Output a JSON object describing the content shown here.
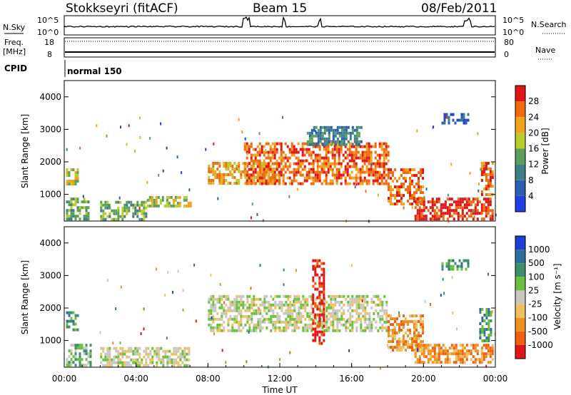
{
  "header": {
    "station": "Stokkseyri (fitACF)",
    "beam": "Beam 15",
    "date": "08/Feb/2011"
  },
  "summary": {
    "nsky_label": "N.Sky",
    "nsearch_label": "N.Search",
    "noise_ticks": [
      "10^5",
      "10^0"
    ],
    "freq_label_1": "Freq.",
    "freq_label_2": "[MHz]",
    "freq_ticks": [
      "18",
      "8"
    ],
    "nave_label": "Nave",
    "nave_ticks": [
      "80",
      "0"
    ],
    "cpid_label": "CPID",
    "cpid_value": "normal 150"
  },
  "time_axis": {
    "label": "Time UT",
    "ticks": [
      "00:00",
      "04:00",
      "08:00",
      "12:00",
      "16:00",
      "20:00",
      "00:00"
    ]
  },
  "chart_data": [
    {
      "type": "heatmap",
      "panel": "power",
      "ylabel": "Slant Range [km]",
      "ylim": [
        180,
        4500
      ],
      "y_ticks": [
        "1000",
        "2000",
        "3000",
        "4000"
      ],
      "xlim_hours": [
        0,
        24
      ],
      "colorbar_label": "Power [dB]",
      "colorbar_ticks": [
        "4",
        "8",
        "12",
        "16",
        "20",
        "24",
        "28"
      ],
      "colors": [
        "#1f3fe6",
        "#2a5fb0",
        "#3f7f8a",
        "#5aa05a",
        "#b8cc2a",
        "#f2a21a",
        "#f06a10",
        "#e01515"
      ],
      "regions": [
        {
          "t0": 0.1,
          "t1": 0.7,
          "r0": 1300,
          "r1": 1800,
          "level": 4
        },
        {
          "t0": 0.1,
          "t1": 1.4,
          "r0": 250,
          "r1": 900,
          "level": 3
        },
        {
          "t0": 2.0,
          "t1": 4.6,
          "r0": 250,
          "r1": 800,
          "level": 3
        },
        {
          "t0": 4.6,
          "t1": 7.0,
          "r0": 600,
          "r1": 950,
          "level": 4
        },
        {
          "t0": 8.0,
          "t1": 12.0,
          "r0": 1300,
          "r1": 2000,
          "level": 5
        },
        {
          "t0": 10.0,
          "t1": 18.0,
          "r0": 1300,
          "r1": 2600,
          "level": 6
        },
        {
          "t0": 13.5,
          "t1": 16.5,
          "r0": 2500,
          "r1": 3100,
          "level": 2
        },
        {
          "t0": 18.0,
          "t1": 20.0,
          "r0": 700,
          "r1": 1800,
          "level": 6
        },
        {
          "t0": 19.5,
          "t1": 23.8,
          "r0": 250,
          "r1": 900,
          "level": 7
        },
        {
          "t0": 21.0,
          "t1": 22.5,
          "r0": 3200,
          "r1": 3500,
          "level": 1
        },
        {
          "t0": 23.2,
          "t1": 23.8,
          "r0": 1000,
          "r1": 2000,
          "level": 6
        }
      ]
    },
    {
      "type": "heatmap",
      "panel": "velocity",
      "ylabel": "Slant Range [km]",
      "ylim": [
        180,
        4500
      ],
      "y_ticks": [
        "1000",
        "2000",
        "3000",
        "4000"
      ],
      "xlim_hours": [
        0,
        24
      ],
      "colorbar_label": "Velocity [m s⁻¹]",
      "colorbar_ticks": [
        "1000",
        "500",
        "100",
        "25",
        "-25",
        "-100",
        "-500",
        "-1000"
      ],
      "colors": [
        "#1e3fd0",
        "#2e6fa0",
        "#3f8f6a",
        "#6cc040",
        "#c8c8c0",
        "#f0c060",
        "#f09020",
        "#f06010",
        "#e01515"
      ],
      "regions": [
        {
          "t0": 0.1,
          "t1": 0.8,
          "r0": 1300,
          "r1": 1900,
          "level": 2
        },
        {
          "t0": 0.1,
          "t1": 1.5,
          "r0": 250,
          "r1": 900,
          "level": 3
        },
        {
          "t0": 2.0,
          "t1": 7.0,
          "r0": 250,
          "r1": 800,
          "level": 4
        },
        {
          "t0": 8.0,
          "t1": 18.0,
          "r0": 1300,
          "r1": 2400,
          "level": 4
        },
        {
          "t0": 13.8,
          "t1": 14.4,
          "r0": 900,
          "r1": 3500,
          "level": 8
        },
        {
          "t0": 18.0,
          "t1": 20.0,
          "r0": 700,
          "r1": 1800,
          "level": 6
        },
        {
          "t0": 19.5,
          "t1": 23.8,
          "r0": 300,
          "r1": 900,
          "level": 6
        },
        {
          "t0": 21.0,
          "t1": 22.5,
          "r0": 3200,
          "r1": 3500,
          "level": 2
        },
        {
          "t0": 23.1,
          "t1": 23.8,
          "r0": 1000,
          "r1": 2000,
          "level": 2
        }
      ]
    }
  ]
}
